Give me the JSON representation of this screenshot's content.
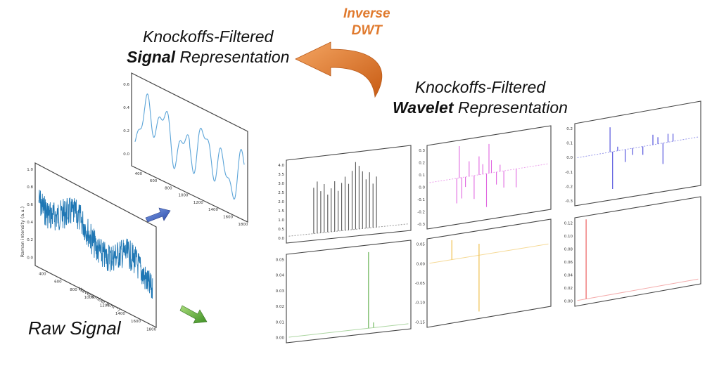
{
  "labels": {
    "raw_signal": "Raw Signal",
    "signal_line1": "Knockoffs-Filtered",
    "signal_bold": "Signal",
    "signal_rest": " Representation",
    "wavelet_line1": "Knockoffs-Filtered",
    "wavelet_bold": "Wavelet",
    "wavelet_rest": " Representation",
    "inverse_line1": "Inverse",
    "inverse_line2": "DWT"
  },
  "raw_panel": {
    "ylabel": "Raman intensity (a.u.)",
    "xlabel": "Wavenumber (cm⁻¹)",
    "yticks": [
      "0.0",
      "0.2",
      "0.4",
      "0.6",
      "0.8",
      "1.0"
    ],
    "xticks": [
      "400",
      "600",
      "800",
      "1000",
      "1200",
      "1400",
      "1600",
      "1800"
    ],
    "color": "#1f77b4"
  },
  "signal_panel": {
    "yticks": [
      "0.6",
      "0.4",
      "0.2",
      "0.0"
    ],
    "xticks": [
      "400",
      "600",
      "800",
      "1000",
      "1200",
      "1400",
      "1600",
      "1800"
    ],
    "color": "#5ba4d8"
  },
  "wavelet_panels": [
    {
      "id": "approx",
      "color": "#555555",
      "yticks": [
        "4.0",
        "3.5",
        "3.0",
        "2.5",
        "2.0",
        "1.5",
        "1.0",
        "0.5",
        "0.0"
      ]
    },
    {
      "id": "d1",
      "color": "#e066e0",
      "yticks": [
        "0.3",
        "0.2",
        "0.1",
        "0.0",
        "-0.1",
        "-0.2",
        "-0.3"
      ]
    },
    {
      "id": "d2",
      "color": "#5555dd",
      "yticks": [
        "0.2",
        "0.1",
        "0.0",
        "-0.1",
        "-0.2",
        "-0.3"
      ]
    },
    {
      "id": "d3",
      "color": "#77bb66",
      "yticks": [
        "0.05",
        "0.04",
        "0.03",
        "0.02",
        "0.01",
        "0.00"
      ]
    },
    {
      "id": "d4",
      "color": "#f0c050",
      "yticks": [
        "0.05",
        "0.00",
        "-0.05",
        "-0.10",
        "-0.15"
      ]
    },
    {
      "id": "d5",
      "color": "#ee7777",
      "yticks": [
        "0.12",
        "0.10",
        "0.08",
        "0.06",
        "0.04",
        "0.02",
        "0.00"
      ]
    }
  ],
  "colors": {
    "arrow_orange": "#e07a2e",
    "arrow_blue": "#3a5fbf",
    "arrow_green": "#5aaa3a"
  }
}
